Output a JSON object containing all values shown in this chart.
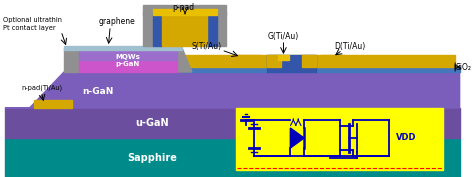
{
  "colors": {
    "sapphire": "#008B8B",
    "u_gan": "#6B4E9E",
    "n_gan": "#7B5EBB",
    "p_gan": "#9B6ECC",
    "mqws": "#CC55CC",
    "graphene": "#A0C0D0",
    "gray": "#909090",
    "gold": "#D4A800",
    "gold2": "#E8C000",
    "blue_sio2": "#4477BB",
    "gate_blue": "#3355AA",
    "circuit_bg": "#FFFF00",
    "circuit_line": "#0000BB",
    "white": "#FFFFFF",
    "black": "#000000"
  },
  "labels": {
    "sapphire": "Sapphire",
    "u_gan": "u-GaN",
    "n_gan": "n-GaN",
    "p_gan_mqws": "p-GaN\nMQWs",
    "graphene": "graphene",
    "p_pad": "p-pad",
    "n_pad": "n-pad(Ti/Au)",
    "s_contact": "S(Ti/Au)",
    "g_contact": "G(Ti/Au)",
    "d_contact": "D(Ti/Au)",
    "sio2": "SiO₂",
    "vdd": "VDD",
    "optional": "Optional ultrathin",
    "pt_layer": "Pt contact layer"
  }
}
